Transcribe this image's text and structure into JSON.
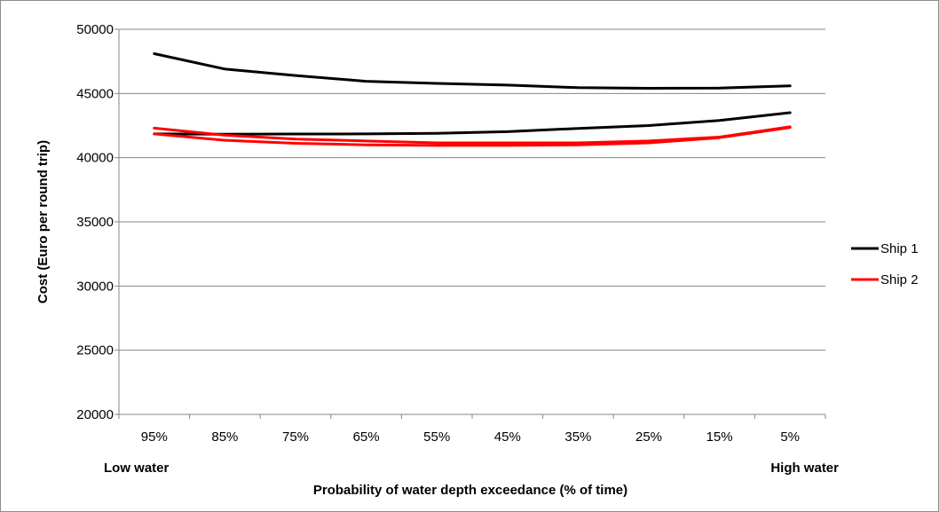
{
  "chart_data": {
    "type": "line",
    "categories": [
      "95%",
      "85%",
      "75%",
      "65%",
      "55%",
      "45%",
      "35%",
      "25%",
      "15%",
      "5%"
    ],
    "series": [
      {
        "name": "Ship 1",
        "color": "#000000",
        "values": [
          48100,
          46900,
          46400,
          45950,
          45780,
          45650,
          45450,
          45400,
          45420,
          45600
        ]
      },
      {
        "name": "",
        "color": "#000000",
        "values": [
          41850,
          41820,
          41840,
          41850,
          41900,
          42020,
          42280,
          42500,
          42900,
          43500
        ]
      },
      {
        "name": "Ship 2",
        "color": "#ff0000",
        "values": [
          42300,
          41750,
          41450,
          41300,
          41150,
          41150,
          41150,
          41300,
          41600,
          42400
        ]
      },
      {
        "name": "",
        "color": "#ff0000",
        "values": [
          41850,
          41350,
          41120,
          41000,
          40950,
          40950,
          41000,
          41150,
          41550,
          42350
        ]
      }
    ],
    "ylim": [
      20000,
      50000
    ],
    "yticks": [
      "20000",
      "25000",
      "30000",
      "35000",
      "40000",
      "45000",
      "50000"
    ],
    "ylabel": "Cost (Euro per round trip)",
    "xlabel": "Probability of water depth exceedance (% of time)",
    "x_annotations": {
      "left": "Low water",
      "right": "High water"
    },
    "legend": [
      "Ship 1",
      "Ship 2"
    ],
    "legend_position": "right",
    "grid": "horizontal"
  }
}
